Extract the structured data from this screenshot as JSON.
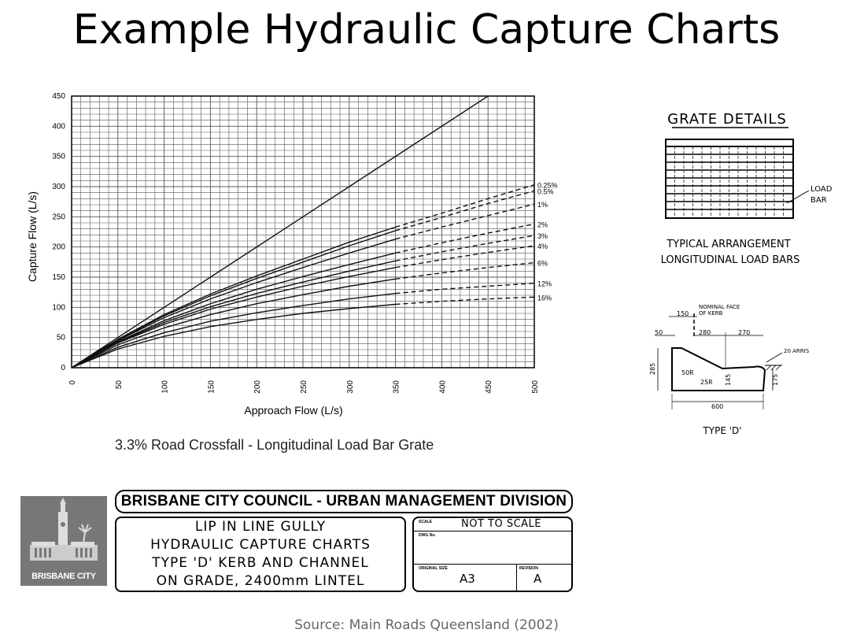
{
  "title": "Example Hydraulic Capture Charts",
  "chart_data": {
    "type": "line",
    "xlabel": "Approach Flow (L/s)",
    "ylabel": "Capture Flow (L/s)",
    "xlim": [
      0,
      500
    ],
    "ylim": [
      0,
      450
    ],
    "x_ticks": [
      "0",
      "50",
      "100",
      "150",
      "200",
      "250",
      "300",
      "350",
      "400",
      "450",
      "500"
    ],
    "y_ticks": [
      "0",
      "50",
      "100",
      "150",
      "200",
      "250",
      "300",
      "350",
      "400",
      "450"
    ],
    "grid": true,
    "reference_line": {
      "x": [
        0,
        450
      ],
      "y": [
        0,
        450
      ]
    },
    "series": [
      {
        "name": "0.25%",
        "x": [
          0,
          50,
          100,
          150,
          200,
          250,
          300,
          350,
          400,
          450,
          500
        ],
        "y": [
          0,
          47,
          88,
          122,
          152,
          180,
          208,
          233,
          256,
          280,
          303
        ]
      },
      {
        "name": "0.5%",
        "x": [
          0,
          50,
          100,
          150,
          200,
          250,
          300,
          350,
          400,
          450,
          500
        ],
        "y": [
          0,
          46,
          86,
          119,
          148,
          175,
          202,
          227,
          249,
          272,
          293
        ]
      },
      {
        "name": "1%",
        "x": [
          0,
          50,
          100,
          150,
          200,
          250,
          300,
          350,
          400,
          450,
          500
        ],
        "y": [
          0,
          45,
          83,
          114,
          141,
          166,
          190,
          213,
          233,
          252,
          271
        ]
      },
      {
        "name": "2%",
        "x": [
          0,
          50,
          100,
          150,
          200,
          250,
          300,
          350,
          400,
          450,
          500
        ],
        "y": [
          0,
          43,
          78,
          106,
          130,
          151,
          171,
          190,
          207,
          223,
          238
        ]
      },
      {
        "name": "3%",
        "x": [
          0,
          50,
          100,
          150,
          200,
          250,
          300,
          350,
          400,
          450,
          500
        ],
        "y": [
          0,
          42,
          75,
          101,
          123,
          142,
          160,
          177,
          192,
          206,
          219
        ]
      },
      {
        "name": "4%",
        "x": [
          0,
          50,
          100,
          150,
          200,
          250,
          300,
          350,
          400,
          450,
          500
        ],
        "y": [
          0,
          41,
          72,
          97,
          117,
          135,
          151,
          166,
          179,
          191,
          202
        ]
      },
      {
        "name": "6%",
        "x": [
          0,
          50,
          100,
          150,
          200,
          250,
          300,
          350,
          400,
          450,
          500
        ],
        "y": [
          0,
          38,
          66,
          88,
          106,
          121,
          135,
          147,
          157,
          166,
          174
        ]
      },
      {
        "name": "12%",
        "x": [
          0,
          50,
          100,
          150,
          200,
          250,
          300,
          350,
          400,
          450,
          500
        ],
        "y": [
          0,
          34,
          58,
          77,
          91,
          103,
          114,
          123,
          130,
          135,
          140
        ]
      },
      {
        "name": "16%",
        "x": [
          0,
          50,
          100,
          150,
          200,
          250,
          300,
          350,
          400,
          450,
          500
        ],
        "y": [
          0,
          31,
          52,
          68,
          80,
          90,
          98,
          105,
          110,
          114,
          117
        ]
      }
    ],
    "dashed_from_x": 350
  },
  "caption": "3.3% Road Crossfall - Longitudinal Load Bar Grate",
  "grate": {
    "title": "GRATE DETAILS",
    "load_bar_label_1": "LOAD",
    "load_bar_label_2": "BAR",
    "arrangement_1": "TYPICAL ARRANGEMENT",
    "arrangement_2": "LONGITUDINAL LOAD BARS"
  },
  "kerb": {
    "nominal_1": "NOMINAL  FACE",
    "nominal_2": "OF  KERB",
    "dim_150": "150",
    "dim_50": "50",
    "dim_280": "280",
    "dim_270": "270",
    "arris": "20  ARRIS",
    "r50": "50R",
    "r25": "25R",
    "dim_145": "145",
    "dim_285": "285",
    "dim_175": "175",
    "dim_600": "600",
    "type": "TYPE  'D'"
  },
  "title_block": {
    "council": "BRISBANE CITY COUNCIL - URBAN MANAGEMENT DIVISION",
    "desc_line_1": "LIP  IN  LINE  GULLY",
    "desc_line_2": "HYDRAULIC  CAPTURE  CHARTS",
    "desc_line_3": "TYPE  'D'  KERB  AND  CHANNEL",
    "desc_line_4": "ON  GRADE,  2400mm  LINTEL",
    "scale_label": "SCALE",
    "scale_value": "NOT TO SCALE",
    "dwg_label": "DWG No.",
    "size_label": "ORIGINAL SIZE",
    "size_value": "A3",
    "rev_label": "REVISION",
    "rev_value": "A",
    "logo_text": "BRISBANE CITY"
  },
  "source": "Source: Main Roads Queensland (2002)"
}
